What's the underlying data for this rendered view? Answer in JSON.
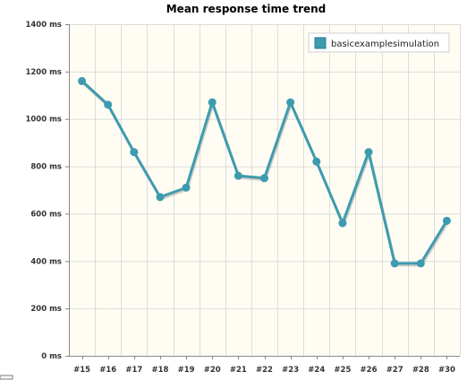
{
  "chart_data": {
    "type": "line",
    "title": "Mean response time trend",
    "xlabel": "",
    "ylabel": "",
    "categories": [
      "#15",
      "#16",
      "#17",
      "#18",
      "#19",
      "#20",
      "#21",
      "#22",
      "#23",
      "#24",
      "#25",
      "#26",
      "#27",
      "#28",
      "#30"
    ],
    "series": [
      {
        "name": "basicexamplesimulation",
        "color": "#3d9bb0",
        "values": [
          1160,
          1060,
          860,
          670,
          710,
          1070,
          760,
          750,
          1070,
          820,
          560,
          860,
          390,
          390,
          570
        ]
      }
    ],
    "ylim": [
      0,
      1400
    ],
    "yticks": [
      0,
      200,
      400,
      600,
      800,
      1000,
      1200,
      1400
    ],
    "ytick_labels": [
      "0 ms",
      "200 ms",
      "400 ms",
      "600 ms",
      "800 ms",
      "1000 ms",
      "1200 ms",
      "1400 ms"
    ],
    "grid": true,
    "legend_position": "top-right",
    "plot_background": "#fffdf3"
  }
}
